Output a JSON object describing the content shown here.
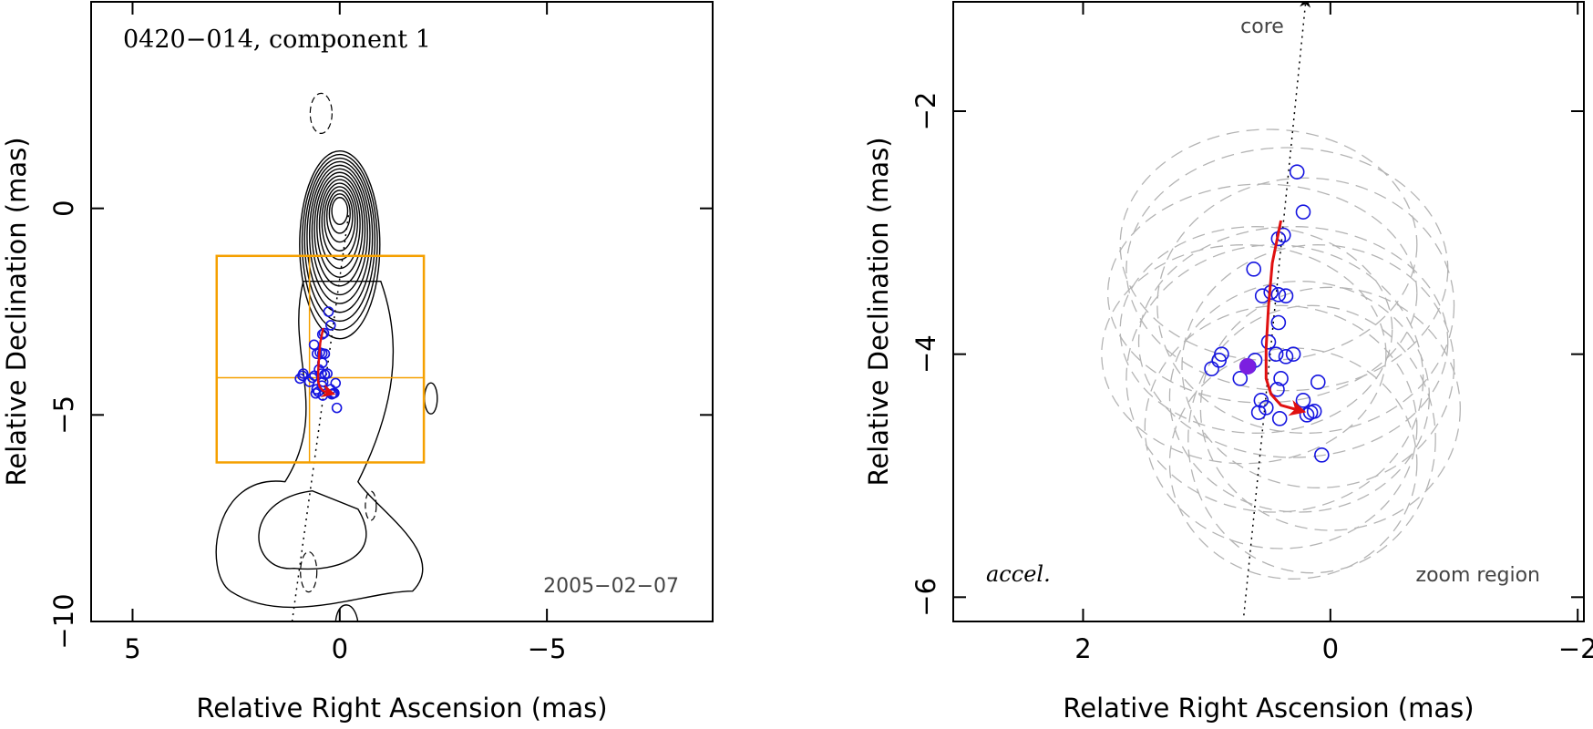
{
  "colors": {
    "contour": "#000000",
    "zoom_box": "#f5a000",
    "points": "#1515e0",
    "filled_point": "#7b1fe0",
    "trajectory": "#e01010",
    "ellipses": "#b4b4b4"
  },
  "chart_data": [
    {
      "type": "scatter",
      "title": "0420−014, component 1",
      "date": "2005−02−07",
      "xlabel": "Relative Right Ascension (mas)",
      "ylabel": "Relative Declination (mas)",
      "xlim": [
        6,
        -9
      ],
      "ylim": [
        -10,
        5
      ],
      "xticks": [
        5,
        0,
        -5
      ],
      "xtick_labels": [
        "5",
        "0",
        "−5"
      ],
      "yticks": [
        -10,
        -5,
        0
      ],
      "ytick_labels": [
        "−10",
        "−5",
        "0"
      ],
      "contour_center": [
        0,
        0
      ],
      "contour_levels": 14,
      "zoom_box": {
        "x": [
          2.97,
          -2.03
        ],
        "y": [
          -6.15,
          -1.15
        ]
      },
      "zoom_crosshair": [
        0.73,
        -4.1
      ],
      "dotted_axis": [
        [
          1.15,
          -10
        ],
        [
          -0.22,
          -0.1
        ]
      ],
      "points": [
        [
          0.27,
          -2.5
        ],
        [
          0.22,
          -2.83
        ],
        [
          0.42,
          -3.05
        ],
        [
          0.38,
          -3.02
        ],
        [
          0.62,
          -3.3
        ],
        [
          0.48,
          -3.49
        ],
        [
          0.55,
          -3.52
        ],
        [
          0.42,
          -3.51
        ],
        [
          0.36,
          -3.52
        ],
        [
          0.42,
          -3.74
        ],
        [
          0.5,
          -3.9
        ],
        [
          0.88,
          -4.0
        ],
        [
          0.9,
          -4.05
        ],
        [
          0.44,
          -4.0
        ],
        [
          0.36,
          -4.02
        ],
        [
          0.3,
          -4.0
        ],
        [
          0.66,
          -4.1
        ],
        [
          0.61,
          -4.05
        ],
        [
          0.96,
          -4.12
        ],
        [
          0.4,
          -4.2
        ],
        [
          0.73,
          -4.2
        ],
        [
          0.43,
          -4.29
        ],
        [
          0.56,
          -4.38
        ],
        [
          0.52,
          -4.44
        ],
        [
          0.22,
          -4.38
        ],
        [
          0.1,
          -4.23
        ],
        [
          0.58,
          -4.48
        ],
        [
          0.41,
          -4.53
        ],
        [
          0.19,
          -4.5
        ],
        [
          0.13,
          -4.47
        ],
        [
          0.16,
          -4.48
        ],
        [
          0.07,
          -4.83
        ]
      ],
      "filled_point": [
        0.67,
        -4.1
      ],
      "trajectory": [
        [
          0.4,
          -2.9
        ],
        [
          0.47,
          -3.25
        ],
        [
          0.5,
          -3.6
        ],
        [
          0.52,
          -3.95
        ],
        [
          0.52,
          -4.2
        ],
        [
          0.48,
          -4.33
        ],
        [
          0.4,
          -4.42
        ],
        [
          0.26,
          -4.46
        ]
      ]
    },
    {
      "type": "scatter",
      "xlabel": "Relative Right Ascension (mas)",
      "ylabel": "Relative Declination (mas)",
      "xlim": [
        3.05,
        -2.05
      ],
      "ylim": [
        -6.2,
        -1.1
      ],
      "xticks": [
        2,
        0,
        -2
      ],
      "xtick_labels": [
        "2",
        "0",
        "−2"
      ],
      "yticks": [
        -6,
        -4,
        -2
      ],
      "ytick_labels": [
        "−6",
        "−4",
        "−2"
      ],
      "core_label": "core",
      "accel_label": "accel.",
      "zoom_label": "zoom region",
      "dotted_axis": [
        [
          0.7,
          -6.15
        ],
        [
          0.2,
          -1.1
        ]
      ],
      "points": [
        [
          0.27,
          -2.5
        ],
        [
          0.22,
          -2.83
        ],
        [
          0.42,
          -3.05
        ],
        [
          0.38,
          -3.02
        ],
        [
          0.62,
          -3.3
        ],
        [
          0.48,
          -3.49
        ],
        [
          0.55,
          -3.52
        ],
        [
          0.42,
          -3.51
        ],
        [
          0.36,
          -3.52
        ],
        [
          0.42,
          -3.74
        ],
        [
          0.5,
          -3.9
        ],
        [
          0.88,
          -4.0
        ],
        [
          0.9,
          -4.05
        ],
        [
          0.44,
          -4.0
        ],
        [
          0.36,
          -4.02
        ],
        [
          0.3,
          -4.0
        ],
        [
          0.66,
          -4.1
        ],
        [
          0.61,
          -4.05
        ],
        [
          0.96,
          -4.12
        ],
        [
          0.4,
          -4.2
        ],
        [
          0.73,
          -4.2
        ],
        [
          0.43,
          -4.29
        ],
        [
          0.56,
          -4.38
        ],
        [
          0.52,
          -4.44
        ],
        [
          0.22,
          -4.38
        ],
        [
          0.1,
          -4.23
        ],
        [
          0.58,
          -4.48
        ],
        [
          0.41,
          -4.53
        ],
        [
          0.19,
          -4.5
        ],
        [
          0.13,
          -4.47
        ],
        [
          0.16,
          -4.48
        ],
        [
          0.07,
          -4.83
        ]
      ],
      "filled_point": [
        0.67,
        -4.1
      ],
      "trajectory": [
        [
          0.4,
          -2.9
        ],
        [
          0.47,
          -3.25
        ],
        [
          0.5,
          -3.6
        ],
        [
          0.52,
          -3.95
        ],
        [
          0.52,
          -4.2
        ],
        [
          0.48,
          -4.33
        ],
        [
          0.4,
          -4.42
        ],
        [
          0.26,
          -4.46
        ]
      ],
      "ellipses": [
        [
          0.5,
          -3.1,
          1.2,
          0.95
        ],
        [
          0.35,
          -3.3,
          1.3,
          1.0
        ],
        [
          0.55,
          -3.5,
          1.25,
          0.9
        ],
        [
          0.2,
          -3.6,
          1.2,
          1.05
        ],
        [
          0.6,
          -3.8,
          1.1,
          0.85
        ],
        [
          0.3,
          -3.9,
          1.25,
          0.95
        ],
        [
          0.7,
          -4.0,
          1.15,
          0.9
        ],
        [
          0.1,
          -4.1,
          1.1,
          1.0
        ],
        [
          0.45,
          -4.2,
          1.2,
          1.1
        ],
        [
          0.25,
          -4.35,
          1.05,
          0.95
        ],
        [
          0.0,
          -4.45,
          1.05,
          1.0
        ],
        [
          0.4,
          -4.6,
          1.1,
          1.0
        ],
        [
          0.15,
          -4.7,
          1.0,
          1.1
        ],
        [
          0.3,
          -4.9,
          1.0,
          0.95
        ]
      ]
    }
  ]
}
